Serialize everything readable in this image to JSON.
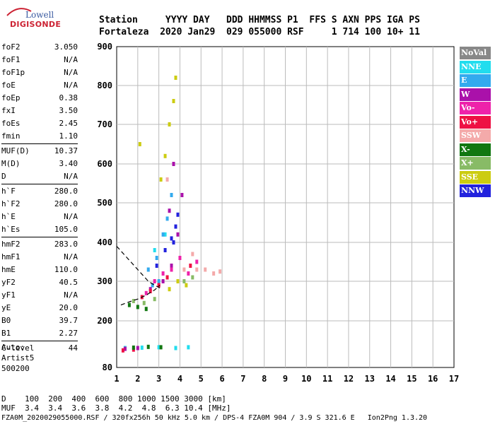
{
  "logo": {
    "line1": "Lowell",
    "line2": "DIGISONDE"
  },
  "header": {
    "labels": "Station     YYYY DAY   DDD HHMMSS P1  FFS S AXN PPS IGA PS",
    "values": "Fortaleza  2020 Jan29  029 055000 RSF     1 714 100 10+ 11"
  },
  "params": {
    "group1": [
      {
        "k": "foF2",
        "v": "3.050"
      },
      {
        "k": "foF1",
        "v": "N/A"
      },
      {
        "k": "foF1p",
        "v": "N/A"
      },
      {
        "k": "foE",
        "v": "N/A"
      },
      {
        "k": "foEp",
        "v": "0.38"
      },
      {
        "k": "fxI",
        "v": "3.50"
      },
      {
        "k": "foEs",
        "v": "2.45"
      },
      {
        "k": "fmin",
        "v": "1.10"
      }
    ],
    "group2": [
      {
        "k": "MUF(D)",
        "v": "10.37"
      },
      {
        "k": "M(D)",
        "v": "3.40"
      },
      {
        "k": "D",
        "v": "N/A"
      }
    ],
    "group3": [
      {
        "k": "h`F",
        "v": "280.0"
      },
      {
        "k": "h`F2",
        "v": "280.0"
      },
      {
        "k": "h`E",
        "v": "N/A"
      },
      {
        "k": "h`Es",
        "v": "105.0"
      }
    ],
    "group4": [
      {
        "k": "hmF2",
        "v": "283.0"
      },
      {
        "k": "hmF1",
        "v": "N/A"
      },
      {
        "k": "hmE",
        "v": "110.0"
      },
      {
        "k": "yF2",
        "v": "40.5"
      },
      {
        "k": "yF1",
        "v": "N/A"
      },
      {
        "k": "yE",
        "v": "20.0"
      },
      {
        "k": "B0",
        "v": "39.7"
      },
      {
        "k": "B1",
        "v": "2.27"
      }
    ],
    "group5": [
      {
        "k": "C-level",
        "v": "44"
      }
    ]
  },
  "auto": {
    "line1": "Auto:",
    "line2": "Artist5",
    "line3": "500200"
  },
  "legend": [
    {
      "label": "NoVal",
      "color": "#888888"
    },
    {
      "label": "NNE",
      "color": "#22ddee"
    },
    {
      "label": "E",
      "color": "#33aaee"
    },
    {
      "label": "W",
      "color": "#aa11aa"
    },
    {
      "label": "Vo-",
      "color": "#ee22aa"
    },
    {
      "label": "Vo+",
      "color": "#ee1144"
    },
    {
      "label": "SSW",
      "color": "#f4aaaa"
    },
    {
      "label": "X-",
      "color": "#117711"
    },
    {
      "label": "X+",
      "color": "#88bb66"
    },
    {
      "label": "SSE",
      "color": "#cccc11"
    },
    {
      "label": "NNW",
      "color": "#2222dd"
    }
  ],
  "chart_data": {
    "type": "scatter",
    "xlim": [
      1,
      17
    ],
    "ylim": [
      80,
      900
    ],
    "x_ticks": [
      "1",
      "2",
      "3",
      "4",
      "5",
      "6",
      "7",
      "8",
      "9",
      "10",
      "11",
      "12",
      "13",
      "14",
      "15",
      "16",
      "17"
    ],
    "y_ticks": [
      "80",
      "200",
      "300",
      "400",
      "500",
      "600",
      "700",
      "800",
      "900"
    ],
    "y_tick_values": [
      80,
      200,
      300,
      400,
      500,
      600,
      700,
      800,
      900
    ],
    "grid": true,
    "series": [
      {
        "name": "NNE",
        "color": "#22ddee",
        "points": [
          [
            1.4,
            130
          ],
          [
            2.2,
            131
          ],
          [
            3.0,
            132
          ],
          [
            3.8,
            130
          ],
          [
            4.4,
            132
          ],
          [
            2.8,
            380
          ],
          [
            3.3,
            420
          ]
        ]
      },
      {
        "name": "E",
        "color": "#33aaee",
        "points": [
          [
            2.5,
            330
          ],
          [
            2.9,
            360
          ],
          [
            3.2,
            420
          ],
          [
            3.4,
            460
          ],
          [
            3.6,
            520
          ],
          [
            3.0,
            300
          ],
          [
            2.7,
            290
          ]
        ]
      },
      {
        "name": "W",
        "color": "#aa11aa",
        "points": [
          [
            1.4,
            128
          ],
          [
            2.0,
            130
          ],
          [
            3.2,
            300
          ],
          [
            3.6,
            340
          ],
          [
            3.9,
            420
          ],
          [
            4.1,
            520
          ],
          [
            3.7,
            600
          ],
          [
            3.5,
            480
          ],
          [
            2.6,
            280
          ]
        ]
      },
      {
        "name": "Vo-",
        "color": "#ee22aa",
        "points": [
          [
            2.4,
            270
          ],
          [
            2.8,
            300
          ],
          [
            3.2,
            320
          ],
          [
            3.6,
            330
          ],
          [
            4.0,
            360
          ],
          [
            4.4,
            320
          ],
          [
            4.8,
            350
          ],
          [
            3.0,
            290
          ]
        ]
      },
      {
        "name": "Vo+",
        "color": "#ee1144",
        "points": [
          [
            1.3,
            124
          ],
          [
            1.8,
            126
          ],
          [
            2.2,
            260
          ],
          [
            2.6,
            275
          ],
          [
            3.0,
            290
          ],
          [
            3.4,
            310
          ],
          [
            4.5,
            340
          ]
        ]
      },
      {
        "name": "SSW",
        "color": "#f4aaaa",
        "points": [
          [
            4.2,
            330
          ],
          [
            4.8,
            330
          ],
          [
            5.2,
            330
          ],
          [
            5.6,
            320
          ],
          [
            5.9,
            325
          ],
          [
            4.6,
            370
          ],
          [
            3.4,
            560
          ]
        ]
      },
      {
        "name": "X-",
        "color": "#117711",
        "points": [
          [
            1.6,
            240
          ],
          [
            2.0,
            235
          ],
          [
            2.4,
            230
          ],
          [
            1.8,
            131
          ],
          [
            2.5,
            133
          ],
          [
            3.1,
            132
          ]
        ]
      },
      {
        "name": "X+",
        "color": "#88bb66",
        "points": [
          [
            1.8,
            250
          ],
          [
            2.3,
            245
          ],
          [
            2.8,
            255
          ],
          [
            4.2,
            300
          ],
          [
            4.6,
            310
          ]
        ]
      },
      {
        "name": "SSE",
        "color": "#cccc11",
        "points": [
          [
            3.3,
            620
          ],
          [
            3.5,
            700
          ],
          [
            3.7,
            760
          ],
          [
            3.1,
            560
          ],
          [
            3.5,
            280
          ],
          [
            3.9,
            300
          ],
          [
            4.3,
            290
          ],
          [
            2.1,
            650
          ],
          [
            3.8,
            820
          ]
        ]
      },
      {
        "name": "NNW",
        "color": "#2222dd",
        "points": [
          [
            3.3,
            380
          ],
          [
            3.6,
            410
          ],
          [
            3.8,
            440
          ],
          [
            3.9,
            470
          ],
          [
            3.7,
            400
          ],
          [
            2.9,
            340
          ]
        ]
      }
    ],
    "profile_curve": [
      [
        1.0,
        390
      ],
      [
        1.5,
        360
      ],
      [
        2.0,
        330
      ],
      [
        2.5,
        300
      ],
      [
        2.8,
        290
      ],
      [
        3.05,
        283
      ]
    ],
    "trace_curve": [
      [
        1.2,
        240
      ],
      [
        1.6,
        248
      ],
      [
        2.0,
        255
      ],
      [
        2.4,
        265
      ],
      [
        2.8,
        278
      ],
      [
        3.05,
        290
      ]
    ]
  },
  "bottom": {
    "line1": "D    100  200  400  600  800 1000 1500 3000 [km]",
    "line2": "MUF  3.4  3.4  3.6  3.8  4.2  4.8  6.3 10.4 [MHz]"
  },
  "footer": "FZA0M_2020029055000.RSF / 320fx256h 50 kHz 5.0 km / DPS-4 FZA0M 904 / 3.9 S 321.6 E   Ion2Png 1.3.20"
}
